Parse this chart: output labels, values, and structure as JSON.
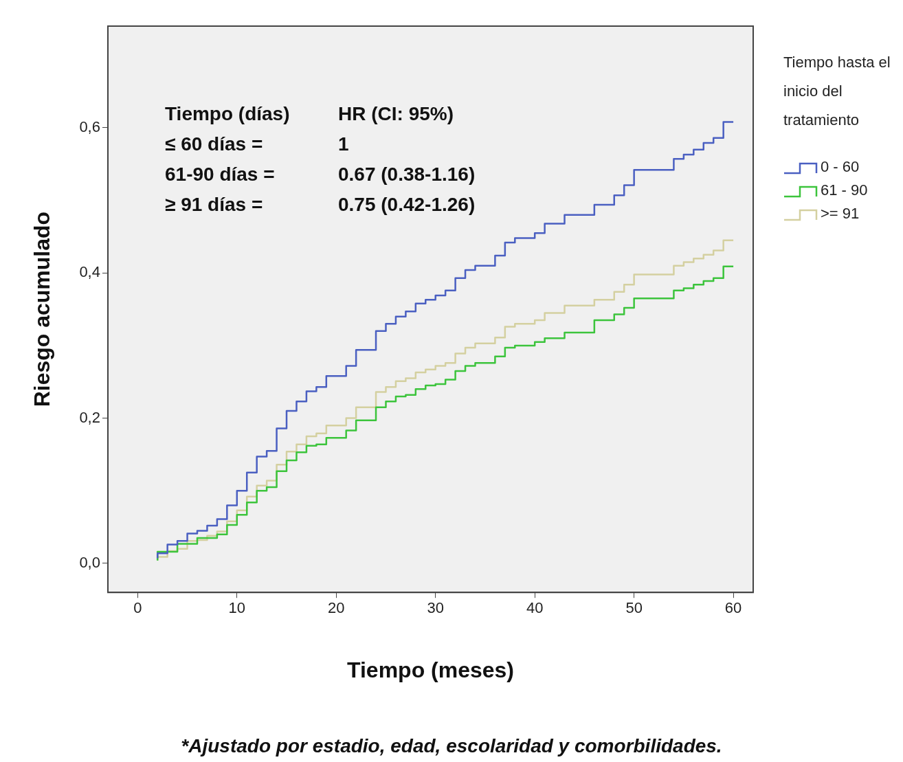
{
  "chart_data": {
    "type": "step",
    "xlabel": "Tiempo (meses)",
    "ylabel": "Riesgo acumulado",
    "legend_title": "Tiempo hasta el inicio del tratamiento",
    "legend": "right",
    "marker": "none",
    "xlim": [
      -3,
      62
    ],
    "ylim": [
      -0.04,
      0.74
    ],
    "xticks": [
      0,
      10,
      20,
      30,
      40,
      50,
      60
    ],
    "yticks": [
      {
        "value": 0,
        "label": "0,0"
      },
      {
        "value": 0.2,
        "label": "0,2"
      },
      {
        "value": 0.4,
        "label": "0,4"
      },
      {
        "value": 0.6,
        "label": "0,6"
      }
    ],
    "series": [
      {
        "name": "0 - 60",
        "color": "#4a5fc1",
        "x": [
          2,
          3,
          4,
          5,
          6,
          7,
          8,
          9,
          10,
          11,
          12,
          13,
          14,
          15,
          16,
          17,
          18,
          19,
          21,
          22,
          24,
          25,
          26,
          27,
          28,
          29,
          30,
          31,
          32,
          33,
          34,
          36,
          37,
          38,
          40,
          41,
          43,
          46,
          48,
          49,
          50,
          54,
          55,
          56,
          57,
          58,
          59,
          60
        ],
        "values": [
          0.007,
          0.014,
          0.026,
          0.031,
          0.041,
          0.045,
          0.052,
          0.061,
          0.08,
          0.1,
          0.125,
          0.147,
          0.155,
          0.186,
          0.21,
          0.223,
          0.237,
          0.243,
          0.258,
          0.272,
          0.294,
          0.32,
          0.33,
          0.34,
          0.347,
          0.358,
          0.363,
          0.369,
          0.376,
          0.393,
          0.404,
          0.41,
          0.424,
          0.442,
          0.448,
          0.455,
          0.468,
          0.48,
          0.494,
          0.507,
          0.521,
          0.542,
          0.557,
          0.563,
          0.57,
          0.579,
          0.586,
          0.608
        ]
      },
      {
        "name": "61 - 90",
        "color": "#3cc43c",
        "x": [
          2,
          4,
          6,
          8,
          9,
          10,
          11,
          12,
          13,
          14,
          15,
          16,
          17,
          18,
          19,
          21,
          22,
          24,
          25,
          26,
          27,
          28,
          29,
          30,
          31,
          32,
          33,
          34,
          36,
          37,
          38,
          40,
          41,
          43,
          46,
          48,
          49,
          50,
          54,
          55,
          56,
          57,
          58,
          59,
          60
        ],
        "values": [
          0.004,
          0.016,
          0.027,
          0.035,
          0.04,
          0.053,
          0.067,
          0.084,
          0.1,
          0.105,
          0.127,
          0.142,
          0.153,
          0.162,
          0.164,
          0.173,
          0.183,
          0.197,
          0.215,
          0.223,
          0.23,
          0.232,
          0.24,
          0.245,
          0.247,
          0.253,
          0.265,
          0.272,
          0.276,
          0.285,
          0.297,
          0.3,
          0.305,
          0.31,
          0.318,
          0.335,
          0.343,
          0.352,
          0.365,
          0.376,
          0.379,
          0.384,
          0.389,
          0.393,
          0.409
        ]
      },
      {
        "name": ">= 91",
        "color": "#d4d0a0",
        "x": [
          2,
          3,
          4,
          5,
          6,
          7,
          8,
          9,
          10,
          11,
          12,
          13,
          14,
          15,
          16,
          17,
          18,
          19,
          21,
          22,
          24,
          25,
          26,
          27,
          28,
          29,
          30,
          31,
          32,
          33,
          34,
          36,
          37,
          38,
          40,
          41,
          43,
          46,
          48,
          49,
          50,
          54,
          55,
          56,
          57,
          58,
          59,
          60
        ],
        "values": [
          0.004,
          0.009,
          0.017,
          0.02,
          0.031,
          0.032,
          0.038,
          0.044,
          0.058,
          0.073,
          0.092,
          0.107,
          0.114,
          0.136,
          0.154,
          0.164,
          0.175,
          0.179,
          0.19,
          0.2,
          0.215,
          0.236,
          0.243,
          0.251,
          0.255,
          0.263,
          0.267,
          0.272,
          0.276,
          0.289,
          0.297,
          0.303,
          0.311,
          0.326,
          0.33,
          0.335,
          0.345,
          0.355,
          0.363,
          0.374,
          0.384,
          0.398,
          0.41,
          0.415,
          0.42,
          0.425,
          0.431,
          0.445
        ]
      }
    ],
    "annotations": [
      "Tiempo (días)",
      "HR (CI: 95%)",
      "≤ 60 días =",
      "1",
      "61-90 días =",
      "0.67 (0.38-1.16)",
      "≥ 91 días =",
      "0.75 (0.42-1.26)",
      "*Ajustado por estadio, edad, escolaridad y comorbilidades."
    ]
  }
}
